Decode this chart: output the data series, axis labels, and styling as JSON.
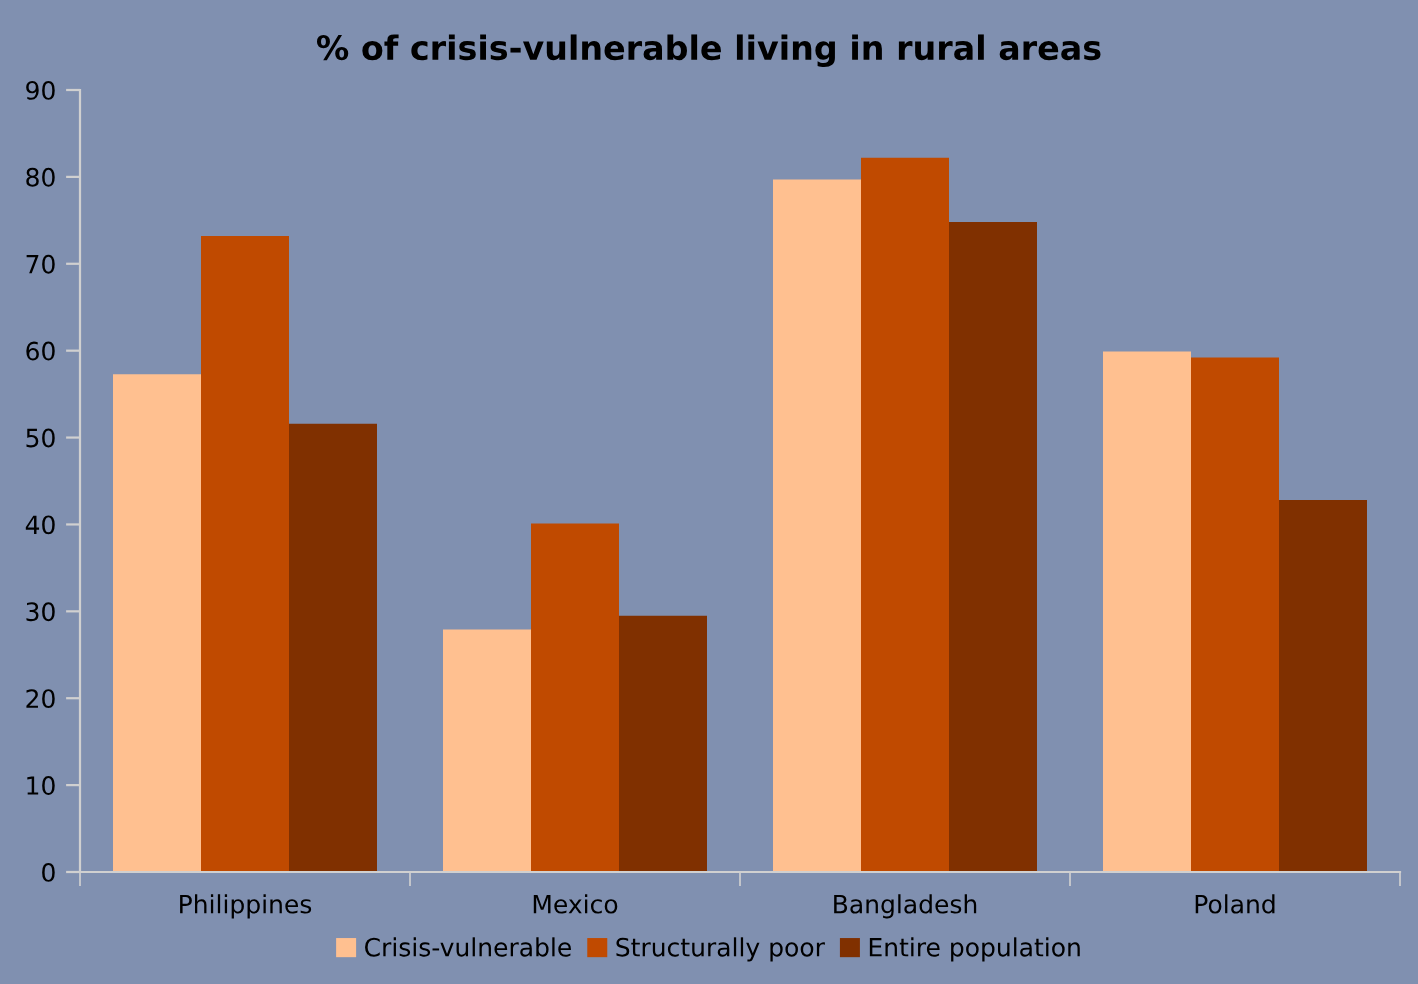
{
  "chart_data": {
    "type": "bar",
    "title": "% of crisis-vulnerable living in rural areas",
    "categories": [
      "Philippines",
      "Mexico",
      "Bangladesh",
      "Poland"
    ],
    "series": [
      {
        "name": "Crisis-vulnerable",
        "color": "#ffc090",
        "values": [
          57.3,
          27.9,
          79.7,
          59.9
        ]
      },
      {
        "name": "Structurally poor",
        "color": "#c04a00",
        "values": [
          73.2,
          40.1,
          82.2,
          59.2
        ]
      },
      {
        "name": "Entire population",
        "color": "#803000",
        "values": [
          51.6,
          29.5,
          74.8,
          42.8
        ]
      }
    ],
    "ylim": [
      0,
      90
    ],
    "yticks": [
      0,
      10,
      20,
      30,
      40,
      50,
      60,
      70,
      80,
      90
    ],
    "grid": false,
    "legend": "bottom"
  }
}
